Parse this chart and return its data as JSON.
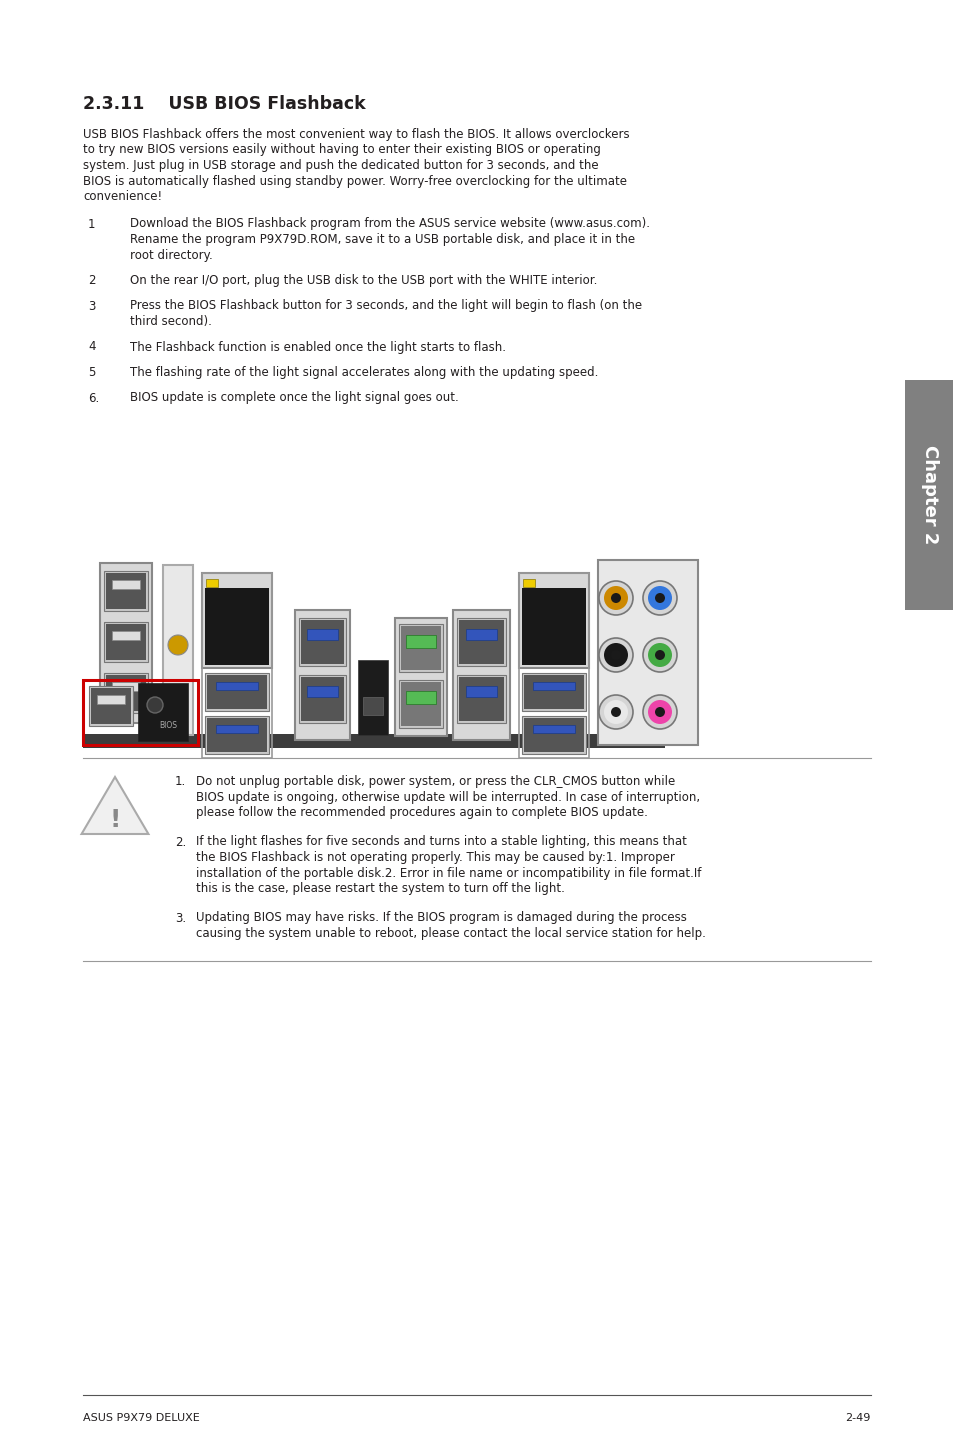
{
  "title": "2.3.11    USB BIOS Flashback",
  "intro_lines": [
    "USB BIOS Flashback offers the most convenient way to flash the BIOS. It allows overclockers",
    "to try new BIOS versions easily without having to enter their existing BIOS or operating",
    "system. Just plug in USB storage and push the dedicated button for 3 seconds, and the",
    "BIOS is automatically flashed using standby power. Worry-free overclocking for the ultimate",
    "convenience!"
  ],
  "steps": [
    {
      "num": "1",
      "lines": [
        "Download the BIOS Flashback program from the ASUS service website (www.asus.com).",
        "Rename the program P9X79D.ROM, save it to a USB portable disk, and place it in the",
        "root directory."
      ]
    },
    {
      "num": "2",
      "lines": [
        "On the rear I/O port, plug the USB disk to the USB port with the WHITE interior."
      ]
    },
    {
      "num": "3",
      "lines": [
        "Press the BIOS Flashback button for 3 seconds, and the light will begin to flash (on the",
        "third second)."
      ]
    },
    {
      "num": "4",
      "lines": [
        "The Flashback function is enabled once the light starts to flash."
      ]
    },
    {
      "num": "5",
      "lines": [
        "The flashing rate of the light signal accelerates along with the updating speed."
      ]
    },
    {
      "num": "6.",
      "lines": [
        "BIOS update is complete once the light signal goes out."
      ]
    }
  ],
  "warnings": [
    {
      "num": "1.",
      "lines": [
        "Do not unplug portable disk, power system, or press the CLR_CMOS button while",
        "BIOS update is ongoing, otherwise update will be interrupted. In case of interruption,",
        "please follow the recommended procedures again to complete BIOS update."
      ]
    },
    {
      "num": "2.",
      "lines": [
        "If the light flashes for five seconds and turns into a stable lighting, this means that",
        "the BIOS Flashback is not operating properly. This may be caused by:1. Improper",
        "installation of the portable disk.2. Error in file name or incompatibility in file format.If",
        "this is the case, please restart the system to turn off the light."
      ]
    },
    {
      "num": "3.",
      "lines": [
        "Updating BIOS may have risks. If the BIOS program is damaged during the process",
        "causing the system unable to reboot, please contact the local service station for help."
      ]
    }
  ],
  "footer_left": "ASUS P9X79 DELUXE",
  "footer_right": "2-49",
  "chapter_label": "Chapter 2",
  "bg_color": "#ffffff",
  "text_color": "#231f20",
  "title_color": "#231f20",
  "sidebar_color": "#808080",
  "line_color": "#999999"
}
